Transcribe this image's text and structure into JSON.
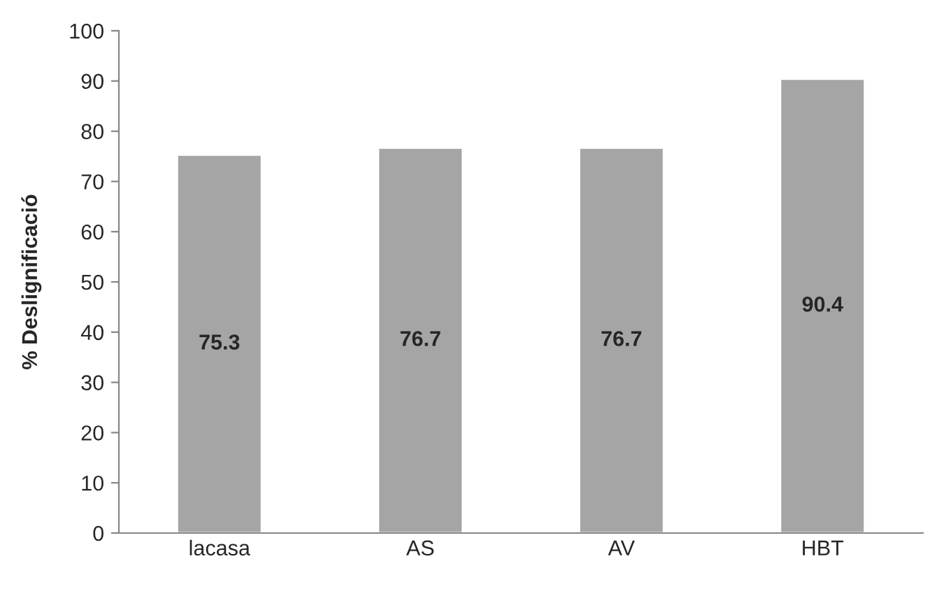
{
  "chart_data": {
    "type": "bar",
    "ylabel": "% Deslignificació",
    "categories": [
      "lacasa",
      "AS",
      "AV",
      "HBT"
    ],
    "values": [
      75.3,
      76.7,
      76.7,
      90.4
    ],
    "color": "#a5a5a5",
    "ylim": [
      0,
      100
    ],
    "yticks": [
      0,
      10,
      20,
      30,
      40,
      50,
      60,
      70,
      80,
      90,
      100
    ],
    "data_labels": true,
    "grid": false,
    "legend": false
  }
}
